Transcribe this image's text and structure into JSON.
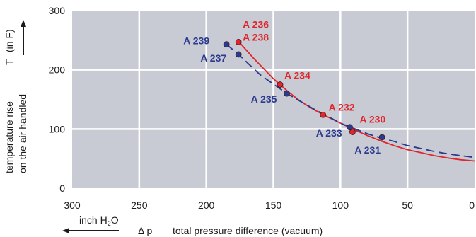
{
  "chart_data": {
    "type": "line",
    "title": "",
    "x_axis": {
      "label": "total pressure difference (vacuum)",
      "symbol": "Δ p",
      "unit": "inch H2O",
      "unit_text": "inch H",
      "unit_subscript": "2",
      "unit_suffix": "O",
      "reversed": true,
      "range": [
        300,
        0
      ],
      "ticks": [
        "300",
        "250",
        "200",
        "150",
        "100",
        "50",
        "0"
      ]
    },
    "y_axis": {
      "label_line1": "temperature rise",
      "label_line2": "on the air handled",
      "symbol": "T",
      "unit": "(in F)",
      "range": [
        0,
        300
      ],
      "ticks": [
        "0",
        "100",
        "200",
        "300"
      ]
    },
    "grid": true,
    "background_color": "#c8cbd3",
    "series": [
      {
        "style": "solid",
        "color": "#e0262b",
        "curve": [
          [
            176,
            248
          ],
          [
            165,
            220
          ],
          [
            150,
            185
          ],
          [
            140,
            165
          ],
          [
            130,
            147
          ],
          [
            120,
            133
          ],
          [
            110,
            121
          ],
          [
            100,
            110
          ],
          [
            90,
            99
          ],
          [
            80,
            89
          ],
          [
            70,
            80
          ],
          [
            60,
            72
          ],
          [
            50,
            65
          ],
          [
            40,
            60
          ],
          [
            30,
            55
          ],
          [
            20,
            51
          ],
          [
            10,
            48
          ],
          [
            0,
            46
          ]
        ],
        "points": [
          {
            "x": 176,
            "y": 247,
            "label": "A 236"
          },
          {
            "x": 176,
            "y": 247,
            "label": "A 238"
          },
          {
            "x": 145,
            "y": 175,
            "label": "A 234"
          },
          {
            "x": 113,
            "y": 124,
            "label": "A 232"
          },
          {
            "x": 91,
            "y": 95,
            "label": "A 230"
          }
        ]
      },
      {
        "style": "dashed",
        "color": "#2b3a8f",
        "curve": [
          [
            185,
            243
          ],
          [
            176,
            226
          ],
          [
            160,
            192
          ],
          [
            140,
            160
          ],
          [
            120,
            134
          ],
          [
            100,
            110
          ],
          [
            90,
            101
          ],
          [
            80,
            92
          ],
          [
            70,
            85
          ],
          [
            60,
            79
          ],
          [
            50,
            72
          ],
          [
            40,
            67
          ],
          [
            30,
            62
          ],
          [
            20,
            58
          ],
          [
            10,
            55
          ],
          [
            0,
            52
          ]
        ],
        "points": [
          {
            "x": 185,
            "y": 243,
            "label": "A 239"
          },
          {
            "x": 176,
            "y": 226,
            "label": "A 237"
          },
          {
            "x": 140,
            "y": 160,
            "label": "A 235"
          },
          {
            "x": 93,
            "y": 103,
            "label": "A 233"
          },
          {
            "x": 69,
            "y": 86,
            "label": "A 231"
          }
        ]
      }
    ]
  }
}
